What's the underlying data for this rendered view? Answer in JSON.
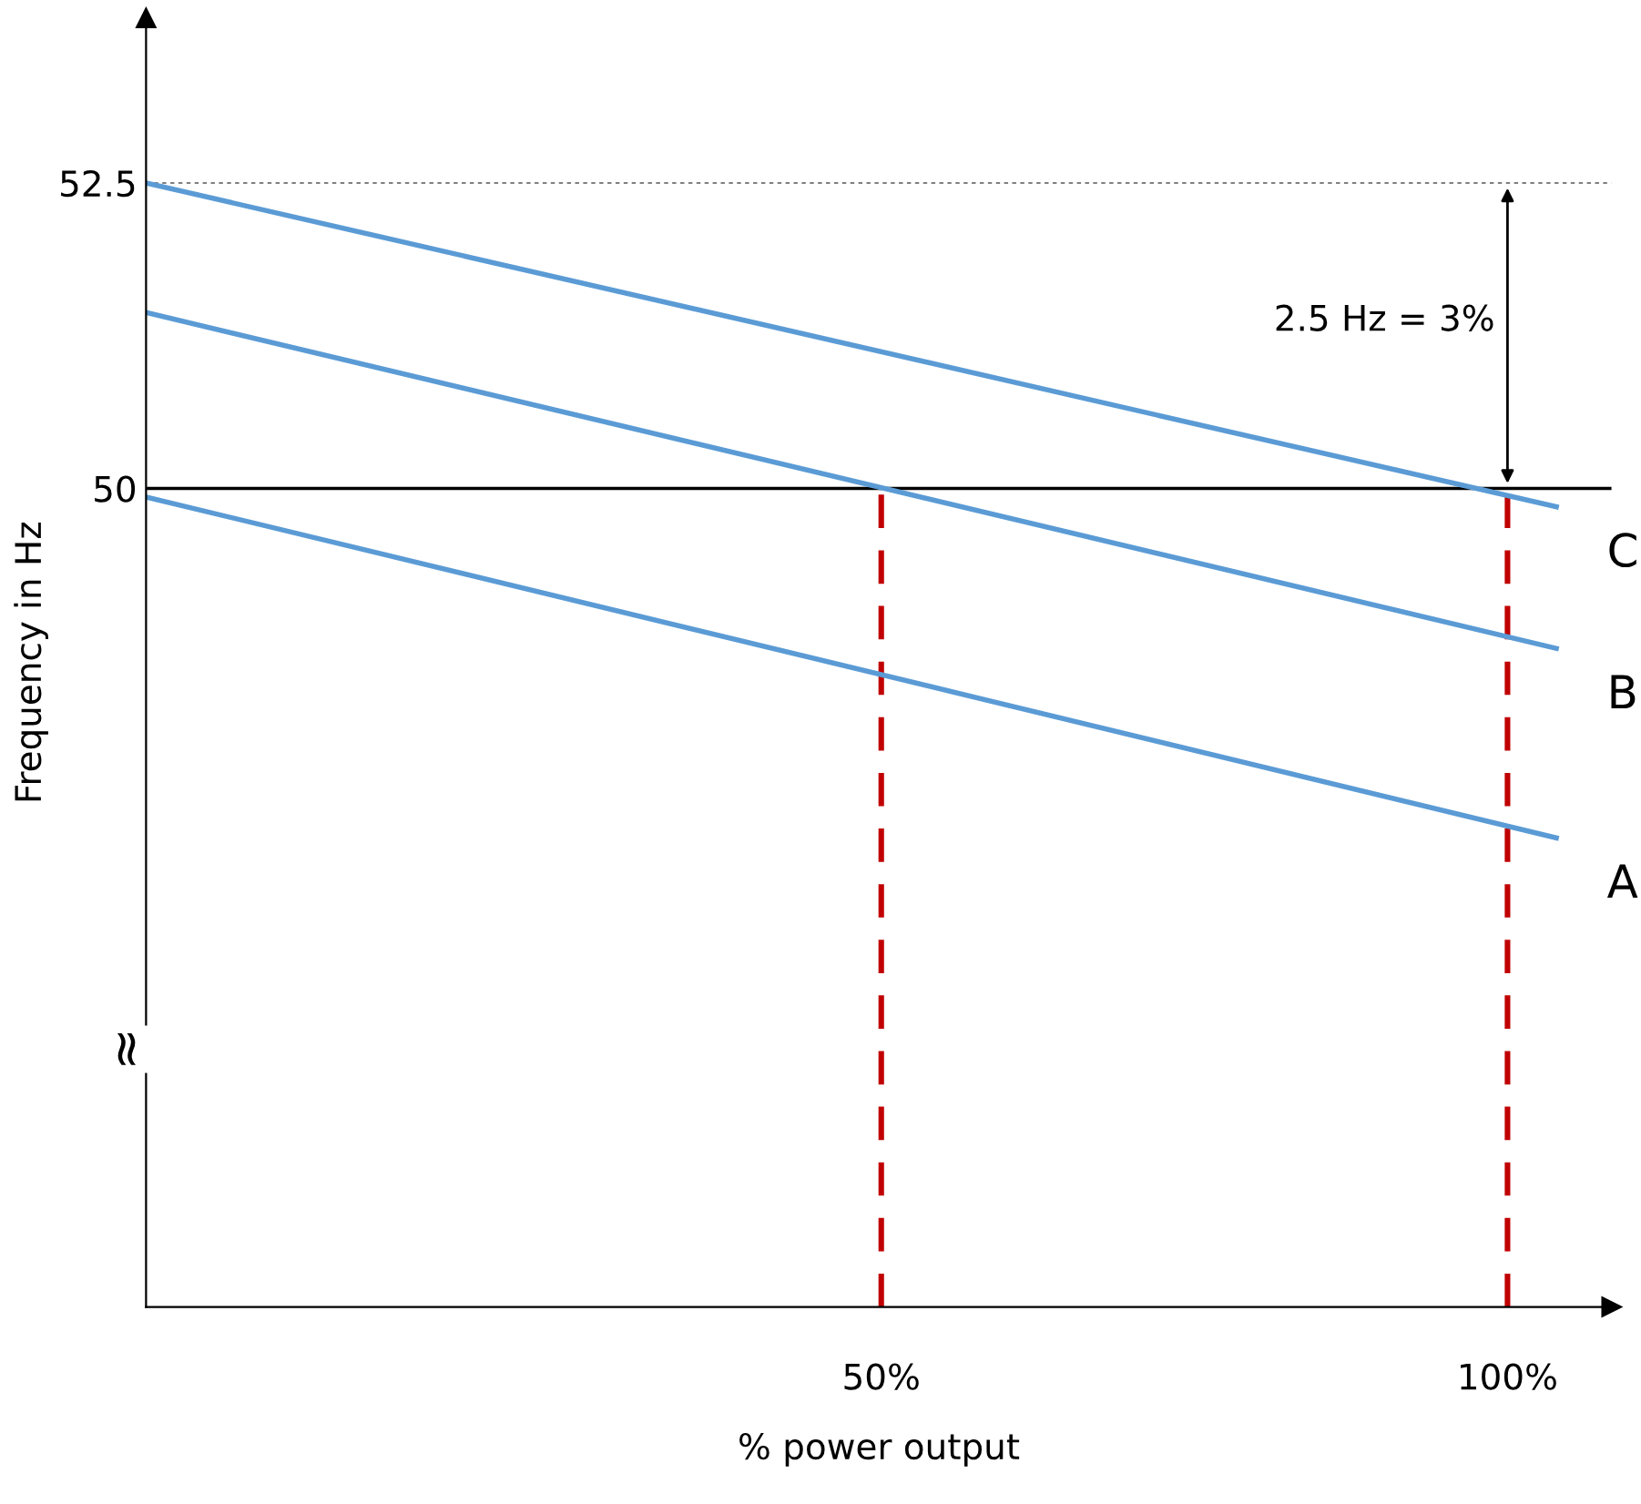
{
  "chart_data": {
    "type": "line",
    "xlabel": "% power output",
    "ylabel": "Frequency in Hz",
    "x": [
      -8.7,
      103.9
    ],
    "series": [
      {
        "name": "C",
        "color": "#5b9bd5",
        "values": [
          52.5,
          49.85
        ]
      },
      {
        "name": "B",
        "color": "#5b9bd5",
        "values": [
          51.44,
          48.69
        ]
      },
      {
        "name": "A",
        "color": "#5b9bd5",
        "values": [
          49.93,
          47.14
        ]
      }
    ],
    "xlim": [
      -8.7,
      108.3
    ],
    "ylim": [
      43.3,
      53.85
    ],
    "xticks": [
      {
        "value": 50,
        "label": "50%"
      },
      {
        "value": 100,
        "label": "100%"
      }
    ],
    "yticks": [
      52.5,
      50
    ],
    "ref_lines": [
      {
        "axis": "y",
        "value": 50,
        "color": "#000000",
        "line_style": "solid"
      },
      {
        "axis": "y",
        "value": 52.5,
        "color": "#808080",
        "line_style": "dotted"
      },
      {
        "axis": "x",
        "value": 50,
        "color": "#c00000",
        "line_style": "dashed"
      },
      {
        "axis": "x",
        "value": 100,
        "color": "#c00000",
        "line_style": "dashed"
      }
    ],
    "annotations": [
      "2.5 Hz = 3%",
      "≈"
    ],
    "grid": false,
    "legend": false,
    "line_style": "solid",
    "marker": "none"
  }
}
